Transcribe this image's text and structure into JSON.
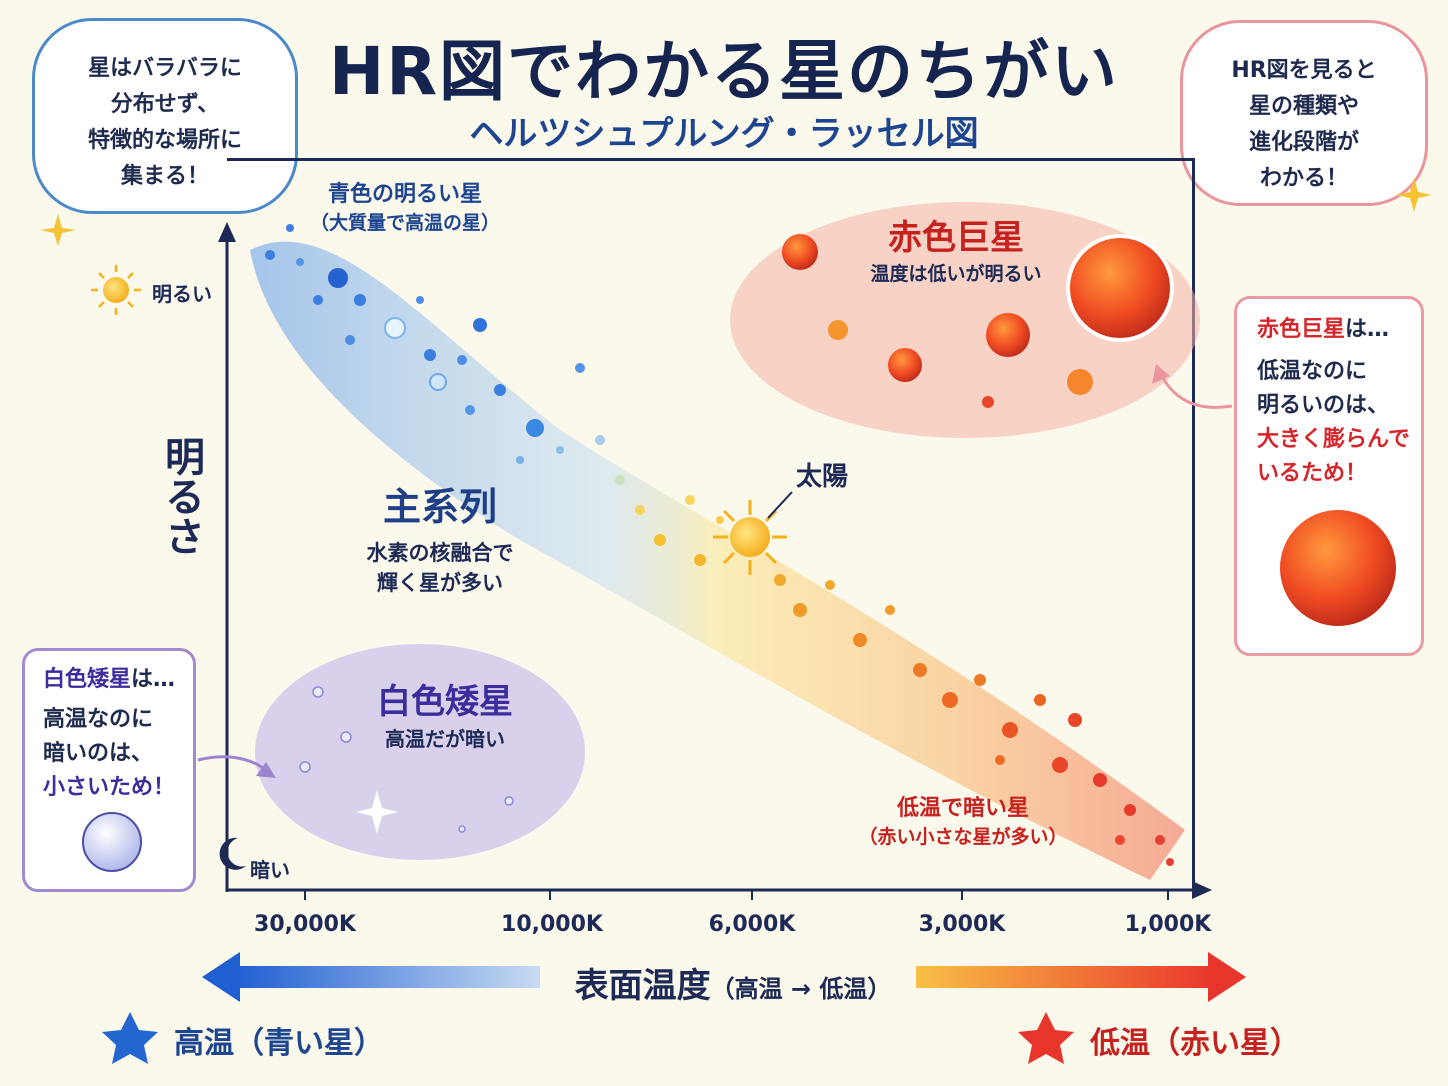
{
  "title": "HR図でわかる星のちがい",
  "subtitle": "ヘルツシュプルング・ラッセル図",
  "bubble_left": [
    "星はバラバラに",
    "分布せず、",
    "特徴的な場所に",
    "集まる！"
  ],
  "bubble_right": [
    "HR図を見ると",
    "星の種類や",
    "進化段階が",
    "わかる！"
  ],
  "y_axis": {
    "title": "明るさ",
    "top_label": "明るい",
    "bottom_label": "暗い"
  },
  "x_axis": {
    "ticks": [
      "30,000K",
      "10,000K",
      "6,000K",
      "3,000K",
      "1,000K"
    ],
    "title": "表面温度",
    "title_note": "（高温 → 低温）",
    "legend_hot": "高温（青い星）",
    "legend_cold": "低温（赤い星）"
  },
  "regions": {
    "blue_bright": {
      "title": "青色の明るい星",
      "note": "（大質量で高温の星）"
    },
    "main_sequence": {
      "title": "主系列",
      "line1": "水素の核融合で",
      "line2": "輝く星が多い"
    },
    "sun": "太陽",
    "red_giant": {
      "title": "赤色巨星",
      "note": "温度は低いが明るい"
    },
    "white_dwarf": {
      "title": "白色矮星",
      "note": "高温だが暗い"
    },
    "red_dim": {
      "title": "低温で暗い星",
      "note": "（赤い小さな星が多い）"
    }
  },
  "box_right": {
    "head": "赤色巨星",
    "head_suffix": "は…",
    "line1": "低温なのに",
    "line2": "明るいのは、",
    "line3": "大きく膨らんで",
    "line4": "いるため！"
  },
  "box_left": {
    "head": "白色矮星",
    "head_suffix": "は…",
    "line1": "高温なのに",
    "line2": "暗いのは、",
    "line3": "小さいため！"
  },
  "colors": {
    "hot": "#1f5fd1",
    "cold": "#e8352b",
    "navy": "#1c2a55",
    "sun": "#f6b21b"
  }
}
